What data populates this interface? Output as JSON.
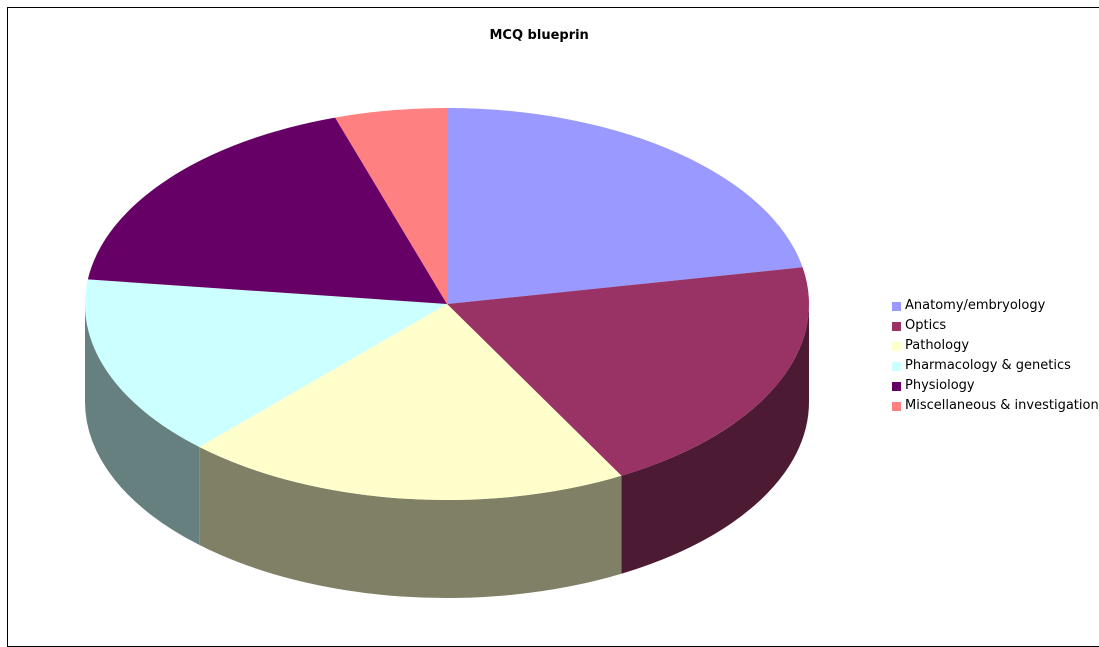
{
  "chart_data": {
    "type": "pie",
    "title": "MCQ blueprin",
    "legend_position": "right",
    "three_d": true,
    "slices": [
      {
        "label": "Anatomy/embryology",
        "value": 22,
        "color": "#9999ff",
        "side_color": "#5c5c99"
      },
      {
        "label": "Optics",
        "value": 20,
        "color": "#993366",
        "side_color": "#4d1a33"
      },
      {
        "label": "Pathology",
        "value": 20,
        "color": "#ffffcc",
        "side_color": "#808066"
      },
      {
        "label": "Pharmacology & genetics",
        "value": 15,
        "color": "#ccffff",
        "side_color": "#668080"
      },
      {
        "label": "Physiology",
        "value": 18,
        "color": "#660066",
        "side_color": "#330033"
      },
      {
        "label": "Miscellaneous & investigation",
        "value": 5,
        "color": "#ff8080",
        "side_color": "#804040"
      }
    ]
  }
}
